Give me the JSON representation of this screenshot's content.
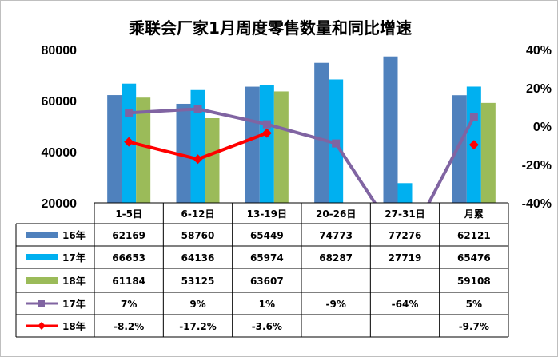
{
  "chart_data": {
    "type": "bar",
    "title": "乘联会厂家1月周度零售数量和同比增速",
    "categories": [
      "1-5日",
      "6-12日",
      "13-19日",
      "20-26日",
      "27-31日",
      "月累"
    ],
    "y_left": {
      "ticks": [
        "20000",
        "40000",
        "60000",
        "80000"
      ],
      "ylim": [
        20000,
        80000
      ]
    },
    "y_right": {
      "ticks": [
        "-40%",
        "-20%",
        "0%",
        "20%",
        "40%"
      ],
      "ylim": [
        -40,
        40
      ]
    },
    "grid": false,
    "legend": "table-below",
    "series": [
      {
        "name": "16年",
        "kind": "bar",
        "color": "#4f81bd",
        "values": [
          62169,
          58760,
          65449,
          74773,
          77276,
          62121
        ],
        "labels": [
          "62169",
          "58760",
          "65449",
          "74773",
          "77276",
          "62121"
        ]
      },
      {
        "name": "17年",
        "kind": "bar",
        "color": "#00b0f0",
        "values": [
          66653,
          64136,
          65974,
          68287,
          27719,
          65476
        ],
        "labels": [
          "66653",
          "64136",
          "65974",
          "68287",
          "27719",
          "65476"
        ]
      },
      {
        "name": "18年",
        "kind": "bar",
        "color": "#9bbb59",
        "values": [
          61184,
          53125,
          63607,
          null,
          null,
          59108
        ],
        "labels": [
          "61184",
          "53125",
          "63607",
          "",
          "",
          "59108"
        ]
      },
      {
        "name": "17年",
        "kind": "line",
        "axis": "right",
        "color": "#8064a2",
        "values": [
          7,
          9,
          1,
          -9,
          -64,
          5
        ],
        "labels": [
          "7%",
          "9%",
          "1%",
          "-9%",
          "-64%",
          "5%"
        ]
      },
      {
        "name": "18年",
        "kind": "line",
        "axis": "right",
        "color": "#ff0000",
        "values": [
          -8.2,
          -17.2,
          -3.6,
          null,
          null,
          -9.7
        ],
        "labels": [
          "-8.2%",
          "-17.2%",
          "-3.6%",
          "",
          "",
          "-9.7%"
        ]
      }
    ]
  }
}
